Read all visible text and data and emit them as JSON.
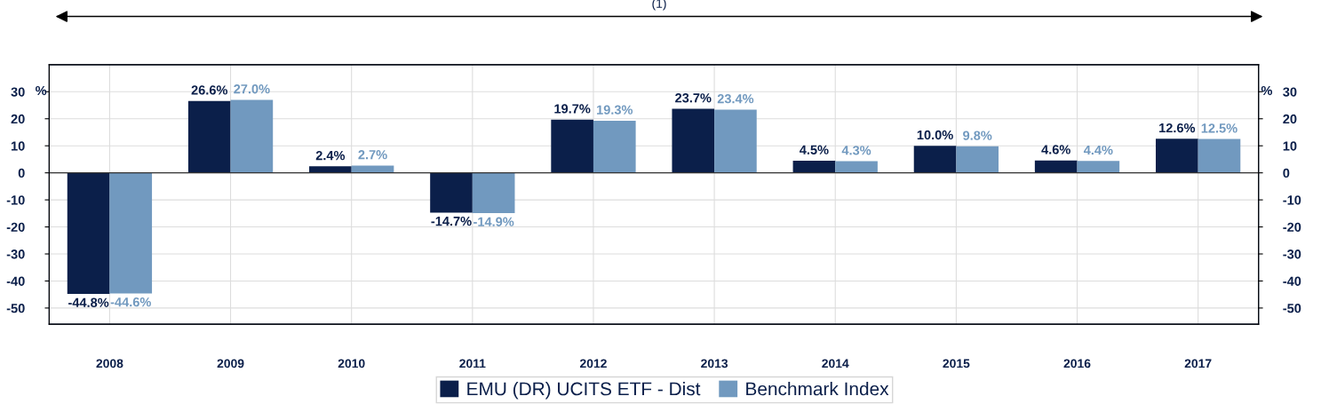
{
  "chart_data": {
    "type": "bar",
    "categories": [
      "2008",
      "2009",
      "2010",
      "2011",
      "2012",
      "2013",
      "2014",
      "2015",
      "2016",
      "2017"
    ],
    "series": [
      {
        "name": "EMU (DR) UCITS ETF - Dist",
        "color": "#0b1f4a",
        "values": [
          -44.8,
          26.6,
          2.4,
          -14.7,
          19.7,
          23.7,
          4.5,
          10.0,
          4.6,
          12.6
        ],
        "value_labels": [
          "-44.8%",
          "26.6%",
          "2.4%",
          "-14.7%",
          "19.7%",
          "23.7%",
          "4.5%",
          "10.0%",
          "4.6%",
          "12.6%"
        ]
      },
      {
        "name": "Benchmark Index",
        "color": "#7199bf",
        "values": [
          -44.6,
          27.0,
          2.7,
          -14.9,
          19.3,
          23.4,
          4.3,
          9.8,
          4.4,
          12.5
        ],
        "value_labels": [
          "-44.6%",
          "27.0%",
          "2.7%",
          "-14.9%",
          "19.3%",
          "23.4%",
          "4.3%",
          "9.8%",
          "4.4%",
          "12.5%"
        ]
      }
    ],
    "ylabel": "%",
    "y2label": "%",
    "ylim": [
      -56,
      40
    ],
    "yticks": [
      -50,
      -40,
      -30,
      -20,
      -10,
      0,
      10,
      20,
      30
    ],
    "y2lim": [
      -56,
      40
    ],
    "y2ticks": [
      -50,
      -40,
      -30,
      -20,
      -10,
      0,
      10,
      20,
      30
    ],
    "annotations": [
      "(1)"
    ],
    "grid": true,
    "legend": "bottom"
  }
}
